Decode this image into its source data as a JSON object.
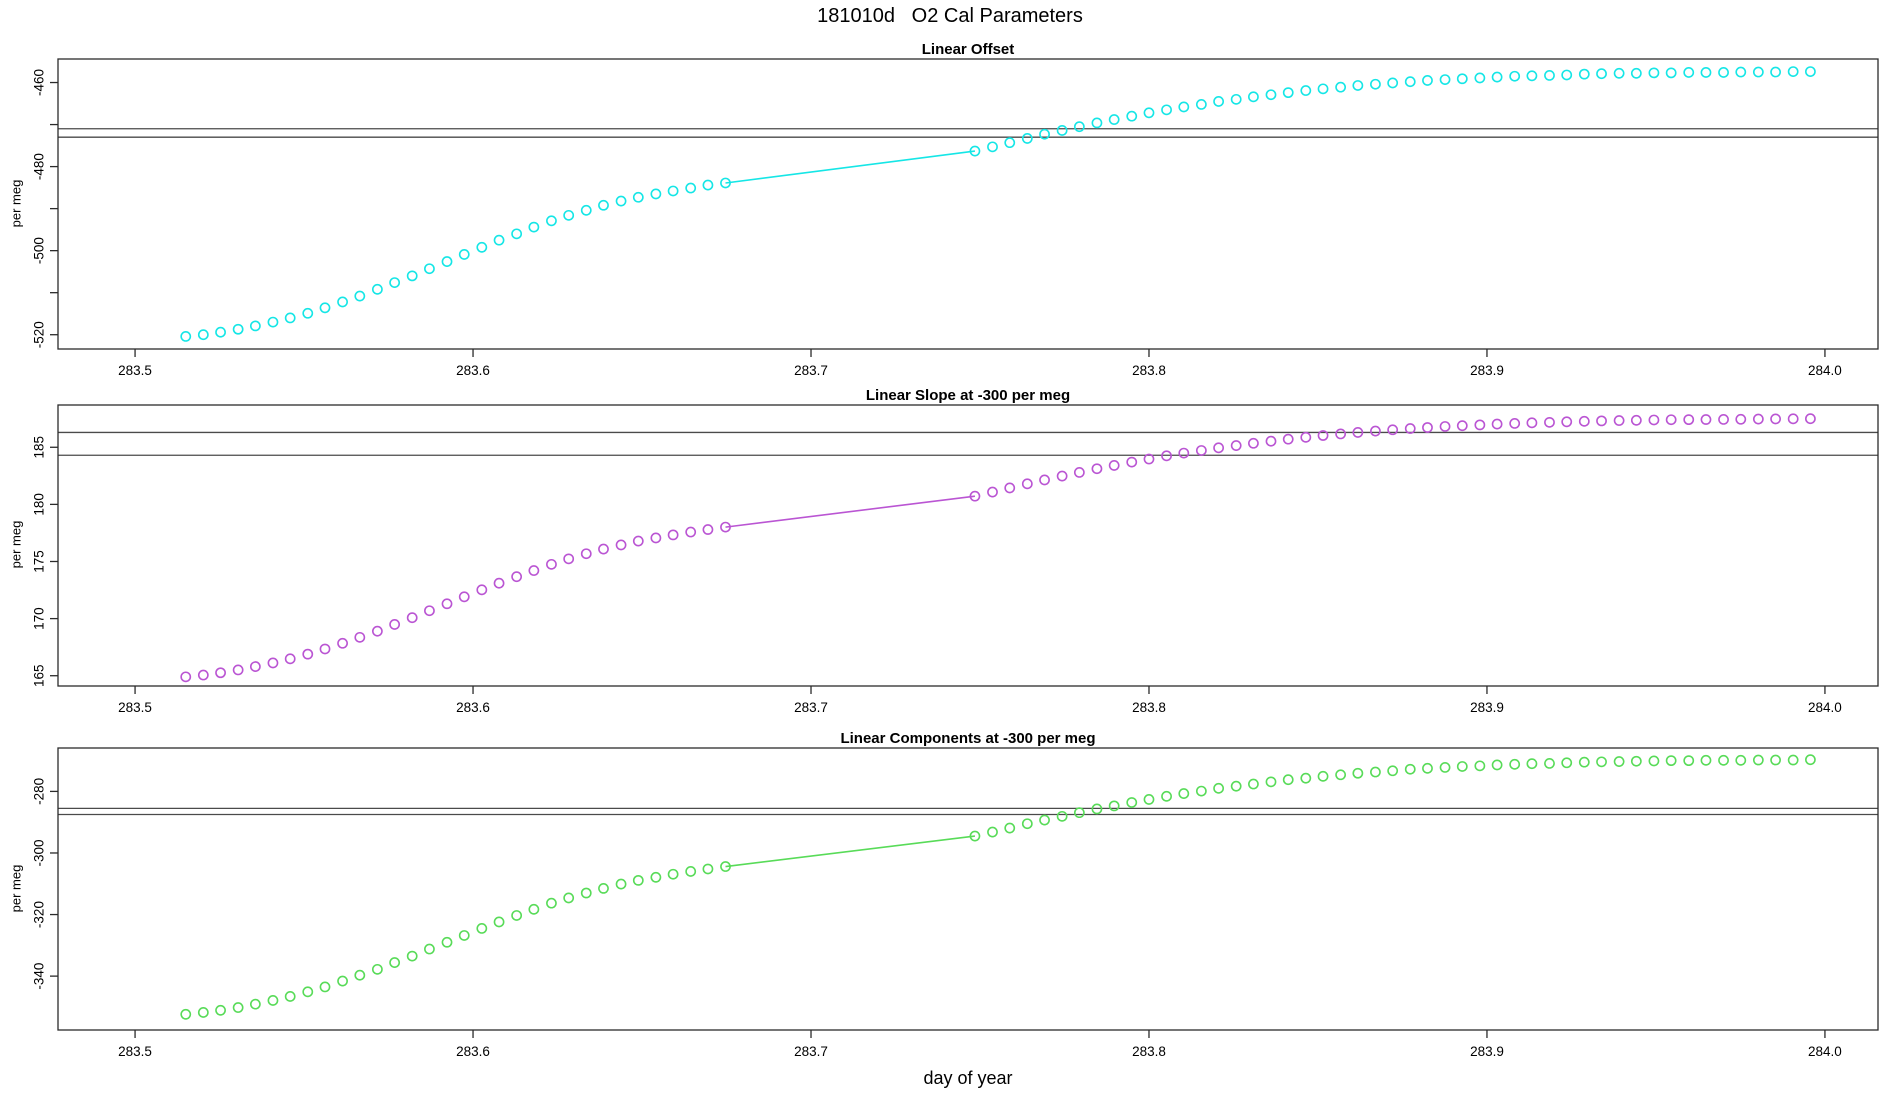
{
  "figure": {
    "title": "181010d   O2 Cal Parameters",
    "xlabel": "day of year"
  },
  "x_days": {
    "pre": [
      283.515,
      283.5202,
      283.5253,
      283.5305,
      283.5356,
      283.5408,
      283.5459,
      283.5511,
      283.5562,
      283.5614,
      283.5665,
      283.5717,
      283.5768,
      283.582,
      283.5871,
      283.5923,
      283.5974,
      283.6026,
      283.6077,
      283.6129,
      283.618,
      283.6232,
      283.6283,
      283.6335,
      283.6386,
      283.6438,
      283.6489,
      283.6541,
      283.6592,
      283.6644,
      283.6695,
      283.6747
    ],
    "post": [
      283.7485,
      283.7537,
      283.7588,
      283.764,
      283.7691,
      283.7743,
      283.7794,
      283.7846,
      283.7897,
      283.7949,
      283.8,
      283.8052,
      283.8103,
      283.8155,
      283.8206,
      283.8258,
      283.8309,
      283.8361,
      283.8412,
      283.8464,
      283.8515,
      283.8567,
      283.8618,
      283.867,
      283.8721,
      283.8773,
      283.8824,
      283.8876,
      283.8927,
      283.8979,
      283.903,
      283.9082,
      283.9133,
      283.9185,
      283.9236,
      283.9288,
      283.9339,
      283.9391,
      283.9442,
      283.9494,
      283.9545,
      283.9597,
      283.9648,
      283.97,
      283.9751,
      283.9803,
      283.9854,
      283.9906,
      283.9957
    ],
    "gap_connected_by_line": true
  },
  "chart_data": [
    {
      "type": "scatter",
      "title": "Linear Offset",
      "ylabel": "per meg",
      "color": "#15E6E6",
      "marker": "open-circle",
      "xlim": [
        283.4772,
        284.0157
      ],
      "ylim": [
        -523.4,
        -454.4
      ],
      "x_ticks": [
        283.5,
        283.6,
        283.7,
        283.8,
        283.9,
        284.0
      ],
      "x_tick_labels": [
        "283.5",
        "283.6",
        "283.7",
        "283.8",
        "283.9",
        "284.0"
      ],
      "y_ticks": [
        -520,
        -500,
        -480,
        -460
      ],
      "y_tick_labels": [
        "-520",
        "-500",
        "-480",
        "-460"
      ],
      "y_minor_ticks": [
        -510,
        -490,
        -470
      ],
      "ref_lines": [
        -471.0,
        -473.0
      ],
      "y": {
        "pre": [
          -520.4,
          -520.0,
          -519.4,
          -518.7,
          -517.9,
          -517.0,
          -516.0,
          -514.9,
          -513.6,
          -512.2,
          -510.8,
          -509.2,
          -507.6,
          -506.0,
          -504.3,
          -502.6,
          -500.9,
          -499.2,
          -497.5,
          -496.0,
          -494.4,
          -492.9,
          -491.6,
          -490.4,
          -489.2,
          -488.2,
          -487.3,
          -486.5,
          -485.8,
          -485.1,
          -484.4,
          -483.9
        ],
        "post": [
          -476.3,
          -475.3,
          -474.3,
          -473.3,
          -472.3,
          -471.4,
          -470.5,
          -469.6,
          -468.8,
          -468.0,
          -467.2,
          -466.5,
          -465.8,
          -465.2,
          -464.5,
          -464.0,
          -463.4,
          -462.9,
          -462.4,
          -461.9,
          -461.5,
          -461.1,
          -460.7,
          -460.4,
          -460.1,
          -459.8,
          -459.5,
          -459.3,
          -459.1,
          -458.9,
          -458.7,
          -458.5,
          -458.4,
          -458.3,
          -458.2,
          -458.0,
          -457.9,
          -457.8,
          -457.8,
          -457.7,
          -457.7,
          -457.6,
          -457.6,
          -457.6,
          -457.5,
          -457.5,
          -457.5,
          -457.4,
          -457.4
        ]
      }
    },
    {
      "type": "scatter",
      "title": "Linear Slope at -300 per meg",
      "ylabel": "per meg",
      "color": "#BA55D3",
      "marker": "open-circle",
      "xlim": [
        283.4772,
        284.0157
      ],
      "ylim": [
        164.1,
        188.7
      ],
      "x_ticks": [
        283.5,
        283.6,
        283.7,
        283.8,
        283.9,
        284.0
      ],
      "x_tick_labels": [
        "283.5",
        "283.6",
        "283.7",
        "283.8",
        "283.9",
        "284.0"
      ],
      "y_ticks": [
        165,
        170,
        175,
        180,
        185
      ],
      "y_tick_labels": [
        "165",
        "170",
        "175",
        "180",
        "185"
      ],
      "y_minor_ticks": [],
      "ref_lines": [
        186.3,
        184.3
      ],
      "y": {
        "pre": [
          164.9,
          165.06,
          165.26,
          165.51,
          165.8,
          166.12,
          166.48,
          166.89,
          167.34,
          167.84,
          168.36,
          168.9,
          169.49,
          170.08,
          170.69,
          171.3,
          171.91,
          172.52,
          173.1,
          173.67,
          174.21,
          174.75,
          175.23,
          175.68,
          176.09,
          176.45,
          176.79,
          177.06,
          177.33,
          177.58,
          177.8,
          178.01
        ],
        "post": [
          180.72,
          181.08,
          181.44,
          181.8,
          182.14,
          182.48,
          182.8,
          183.12,
          183.41,
          183.7,
          183.97,
          184.25,
          184.49,
          184.72,
          184.95,
          185.15,
          185.35,
          185.53,
          185.71,
          185.87,
          186.03,
          186.17,
          186.3,
          186.42,
          186.53,
          186.64,
          186.73,
          186.82,
          186.89,
          186.96,
          187.03,
          187.09,
          187.14,
          187.18,
          187.23,
          187.27,
          187.31,
          187.34,
          187.36,
          187.39,
          187.41,
          187.42,
          187.43,
          187.44,
          187.45,
          187.47,
          187.48,
          187.49,
          187.5
        ]
      }
    },
    {
      "type": "scatter",
      "title": "Linear Components at -300 per meg",
      "ylabel": "per meg",
      "color": "#58DB58",
      "marker": "open-circle",
      "xlim": [
        283.4772,
        284.0157
      ],
      "ylim": [
        -357.5,
        -265.9
      ],
      "x_ticks": [
        283.5,
        283.6,
        283.7,
        283.8,
        283.9,
        284.0
      ],
      "x_tick_labels": [
        "283.5",
        "283.6",
        "283.7",
        "283.8",
        "283.9",
        "284.0"
      ],
      "y_ticks": [
        -340,
        -320,
        -300,
        -280
      ],
      "y_tick_labels": [
        "-340",
        "-320",
        "-300",
        "-280"
      ],
      "y_minor_ticks": [],
      "ref_lines": [
        -285.5,
        -287.5
      ],
      "y": {
        "pre": [
          -352.4,
          -351.8,
          -351.1,
          -350.2,
          -349.1,
          -347.9,
          -346.6,
          -345.1,
          -343.5,
          -341.6,
          -339.7,
          -337.8,
          -335.6,
          -333.5,
          -331.2,
          -329.0,
          -326.8,
          -324.5,
          -322.4,
          -320.3,
          -318.3,
          -316.3,
          -314.6,
          -313.0,
          -311.5,
          -310.1,
          -308.9,
          -307.9,
          -306.9,
          -306.0,
          -305.2,
          -304.4
        ],
        "post": [
          -294.5,
          -293.2,
          -291.9,
          -290.5,
          -289.3,
          -288.1,
          -286.9,
          -285.7,
          -284.7,
          -283.6,
          -282.6,
          -281.6,
          -280.7,
          -279.9,
          -279.0,
          -278.3,
          -277.6,
          -276.9,
          -276.2,
          -275.7,
          -275.1,
          -274.6,
          -274.1,
          -273.7,
          -273.3,
          -272.8,
          -272.5,
          -272.2,
          -271.9,
          -271.7,
          -271.4,
          -271.2,
          -271.0,
          -270.9,
          -270.7,
          -270.5,
          -270.4,
          -270.3,
          -270.2,
          -270.1,
          -270.0,
          -270.0,
          -269.9,
          -269.9,
          -269.9,
          -269.8,
          -269.8,
          -269.8,
          -269.7
        ]
      }
    }
  ]
}
